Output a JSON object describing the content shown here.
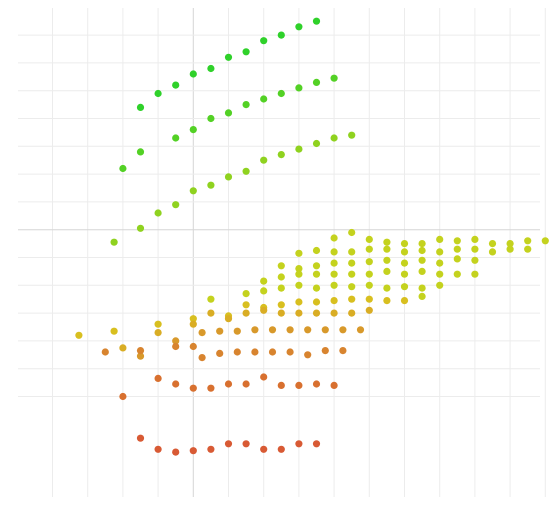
{
  "chart_data": {
    "type": "scatter",
    "title": "",
    "xlabel": "",
    "ylabel": "",
    "xlim": [
      0,
      30
    ],
    "ylim": [
      0,
      28
    ],
    "grid": true,
    "x_gridlines": [
      0,
      2,
      4,
      6,
      8,
      10,
      12,
      14,
      16,
      18,
      20,
      22,
      24,
      26,
      28
    ],
    "y_gridlines": [
      0,
      2,
      4,
      6,
      8,
      10,
      12,
      14,
      16,
      18,
      20,
      22,
      24,
      26
    ],
    "series": [
      {
        "color": "#2fd12a",
        "points": [
          [
            15,
            27
          ],
          [
            14,
            26.6
          ],
          [
            13,
            26
          ],
          [
            12,
            25.6
          ],
          [
            11,
            24.8
          ],
          [
            10,
            24.4
          ],
          [
            9,
            23.6
          ],
          [
            8,
            23.2
          ],
          [
            7,
            22.4
          ],
          [
            6,
            21.8
          ],
          [
            5,
            20.8
          ]
        ]
      },
      {
        "color": "#53d125",
        "points": [
          [
            16,
            22.9
          ],
          [
            15,
            22.6
          ],
          [
            14,
            22.2
          ],
          [
            13,
            21.8
          ],
          [
            12,
            21.4
          ],
          [
            11,
            21
          ],
          [
            10,
            20.4
          ],
          [
            9,
            20
          ],
          [
            8,
            19.2
          ],
          [
            7,
            18.6
          ],
          [
            5,
            17.6
          ],
          [
            4,
            16.4
          ]
        ]
      },
      {
        "color": "#8fd21f",
        "points": [
          [
            17,
            18.8
          ],
          [
            16,
            18.6
          ],
          [
            15,
            18.2
          ],
          [
            14,
            17.8
          ],
          [
            13,
            17.4
          ],
          [
            12,
            17
          ],
          [
            11,
            16.2
          ],
          [
            10,
            15.8
          ],
          [
            9,
            15.2
          ],
          [
            8,
            14.8
          ],
          [
            7,
            13.8
          ],
          [
            6,
            13.2
          ],
          [
            5,
            12.1
          ],
          [
            3.5,
            11.1
          ]
        ]
      },
      {
        "color": "#c4d21e",
        "points": [
          [
            28,
            11.2
          ],
          [
            27,
            11.2
          ],
          [
            26,
            11
          ],
          [
            25,
            11
          ],
          [
            24,
            11.3
          ],
          [
            23,
            11.2
          ],
          [
            22,
            11.3
          ],
          [
            21,
            11
          ],
          [
            20,
            11
          ],
          [
            19,
            11.1
          ],
          [
            18,
            11.3
          ],
          [
            17,
            11.8
          ],
          [
            16,
            11.4
          ],
          [
            27,
            10.6
          ],
          [
            26,
            10.6
          ],
          [
            25,
            10.4
          ],
          [
            24,
            10.6
          ],
          [
            23,
            10.6
          ],
          [
            22,
            10.4
          ],
          [
            21,
            10.5
          ],
          [
            20,
            10.4
          ],
          [
            19,
            10.6
          ],
          [
            18,
            10.6
          ],
          [
            17,
            10.4
          ],
          [
            16,
            10.4
          ],
          [
            15,
            10.5
          ],
          [
            14,
            10.3
          ],
          [
            24,
            9.8
          ],
          [
            23,
            9.9
          ],
          [
            22,
            9.6
          ],
          [
            21,
            9.8
          ],
          [
            20,
            9.6
          ],
          [
            19,
            9.8
          ],
          [
            18,
            9.7
          ],
          [
            17,
            9.6
          ],
          [
            16,
            9.6
          ],
          [
            15,
            9.4
          ],
          [
            14,
            9.2
          ],
          [
            13,
            9.4
          ],
          [
            24,
            8.8
          ],
          [
            23,
            8.8
          ],
          [
            22,
            8.8
          ],
          [
            21,
            9
          ],
          [
            20,
            8.8
          ],
          [
            19,
            9
          ],
          [
            18,
            8.8
          ],
          [
            17,
            8.8
          ],
          [
            16,
            8.8
          ],
          [
            15,
            8.8
          ],
          [
            14,
            8.8
          ],
          [
            13,
            8.6
          ],
          [
            12,
            8.3
          ],
          [
            22,
            8
          ],
          [
            21,
            7.8
          ],
          [
            20,
            7.9
          ],
          [
            19,
            7.8
          ],
          [
            18,
            8
          ],
          [
            17,
            7.9
          ],
          [
            16,
            8
          ],
          [
            15,
            7.8
          ],
          [
            14,
            8
          ],
          [
            13,
            7.8
          ],
          [
            12,
            7.6
          ],
          [
            11,
            7.4
          ],
          [
            9,
            7
          ],
          [
            21,
            7.2
          ]
        ]
      },
      {
        "color": "#d8bf1f",
        "points": [
          [
            20,
            6.9
          ],
          [
            19,
            6.9
          ],
          [
            18,
            7
          ],
          [
            17,
            7
          ],
          [
            16,
            6.9
          ],
          [
            15,
            6.8
          ],
          [
            14,
            6.8
          ],
          [
            13,
            6.6
          ],
          [
            12,
            6.4
          ],
          [
            11,
            6.6
          ],
          [
            10,
            5.8
          ],
          [
            8,
            5.6
          ],
          [
            6,
            5.2
          ],
          [
            3.5,
            4.7
          ],
          [
            1.5,
            4.4
          ]
        ]
      },
      {
        "color": "#d9ad24",
        "points": [
          [
            18,
            6.2
          ],
          [
            17,
            6
          ],
          [
            16,
            6
          ],
          [
            15,
            6
          ],
          [
            14,
            6
          ],
          [
            13,
            6
          ],
          [
            12,
            6.2
          ],
          [
            11,
            6
          ],
          [
            10,
            5.6
          ],
          [
            9,
            6
          ],
          [
            8,
            5.2
          ],
          [
            6,
            4.6
          ],
          [
            4,
            3.5
          ]
        ]
      },
      {
        "color": "#d8992b",
        "points": [
          [
            17.5,
            4.8
          ],
          [
            16.5,
            4.8
          ],
          [
            15.5,
            4.8
          ],
          [
            14.5,
            4.8
          ],
          [
            13.5,
            4.8
          ],
          [
            12.5,
            4.8
          ],
          [
            11.5,
            4.8
          ],
          [
            10.5,
            4.7
          ],
          [
            9.5,
            4.7
          ],
          [
            8.5,
            4.6
          ],
          [
            7,
            4
          ],
          [
            5,
            2.9
          ]
        ]
      },
      {
        "color": "#d8842f",
        "points": [
          [
            16.5,
            3.3
          ],
          [
            15.5,
            3.3
          ],
          [
            14.5,
            3
          ],
          [
            13.5,
            3.2
          ],
          [
            12.5,
            3.2
          ],
          [
            11.5,
            3.2
          ],
          [
            10.5,
            3.2
          ],
          [
            9.5,
            3.1
          ],
          [
            8.5,
            2.8
          ],
          [
            8,
            3.6
          ],
          [
            7,
            3.6
          ],
          [
            5,
            3.3
          ],
          [
            3,
            3.2
          ]
        ]
      },
      {
        "color": "#d8702f",
        "points": [
          [
            16,
            0.8
          ],
          [
            15,
            0.9
          ],
          [
            14,
            0.8
          ],
          [
            13,
            0.8
          ],
          [
            12,
            1.4
          ],
          [
            11,
            0.9
          ],
          [
            10,
            0.9
          ],
          [
            9,
            0.6
          ],
          [
            8,
            0.6
          ],
          [
            7,
            0.9
          ],
          [
            6,
            1.3
          ],
          [
            4,
            0
          ]
        ]
      },
      {
        "color": "#d85a34",
        "points": [
          [
            15,
            -3.4
          ],
          [
            14,
            -3.4
          ],
          [
            13,
            -3.8
          ],
          [
            12,
            -3.8
          ],
          [
            11,
            -3.4
          ],
          [
            10,
            -3.4
          ],
          [
            9,
            -3.8
          ],
          [
            8,
            -3.9
          ],
          [
            7,
            -4
          ],
          [
            6,
            -3.8
          ],
          [
            5,
            -3
          ]
        ]
      }
    ]
  }
}
